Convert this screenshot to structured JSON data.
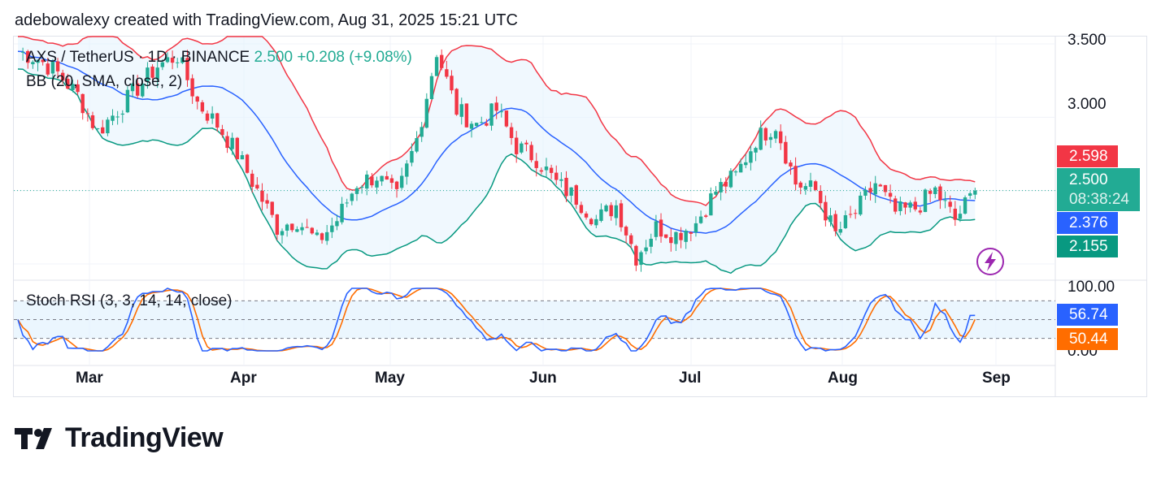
{
  "header": {
    "text": "adebowalexy created with TradingView.com, Aug 31, 2025 15:21 UTC"
  },
  "legend": {
    "symbol": "AXS / TetherUS · 1D · BINANCE",
    "price": "2.500",
    "change": "+0.208 (+9.08%)",
    "bb": "BB (20, SMA, close, 2)",
    "stoch": "Stoch RSI (3, 3, 14, 14, close)"
  },
  "price_axis": {
    "ticks": [
      "3.500",
      "3.000"
    ]
  },
  "stoch_axis": {
    "ticks": [
      "100.00",
      "0.00"
    ]
  },
  "badges": {
    "bb_upper": "2.598",
    "last_price": "2.500",
    "countdown": "08:38:24",
    "bb_basis": "2.376",
    "bb_lower": "2.155",
    "stoch_k": "56.74",
    "stoch_d": "50.44"
  },
  "x_axis": {
    "labels": [
      "Mar",
      "Apr",
      "May",
      "Jun",
      "Jul",
      "Aug",
      "Sep"
    ]
  },
  "logo": {
    "text": "TradingView"
  },
  "colors": {
    "up": "#22ab94",
    "down": "#f23645",
    "bb_upper": "#f23645",
    "bb_basis": "#2962ff",
    "bb_lower": "#089981",
    "bb_fill": "#e3f2fd",
    "stoch_k": "#2962ff",
    "stoch_d": "#ff6d00",
    "stoch_band": "#e3f2fd",
    "badge_upper": "#f23645",
    "badge_last": "#22ab94",
    "badge_basis": "#2962ff",
    "badge_lower": "#089981",
    "badge_d": "#ff6d00"
  },
  "chart_data": {
    "type": "candlestick",
    "title": "AXS / TetherUS · 1D · BINANCE",
    "y_range": [
      1.9,
      3.55
    ],
    "x_range": [
      "2025-02-20",
      "2025-09-05"
    ],
    "close_series": [
      [
        "2025-02-20",
        3.45
      ],
      [
        "2025-02-24",
        3.4
      ],
      [
        "2025-02-28",
        3.3
      ],
      [
        "2025-03-04",
        3.15
      ],
      [
        "2025-03-08",
        2.9
      ],
      [
        "2025-03-12",
        3.05
      ],
      [
        "2025-03-16",
        3.2
      ],
      [
        "2025-03-20",
        3.35
      ],
      [
        "2025-03-24",
        3.42
      ],
      [
        "2025-03-28",
        3.1
      ],
      [
        "2025-04-01",
        2.95
      ],
      [
        "2025-04-05",
        2.75
      ],
      [
        "2025-04-09",
        2.5
      ],
      [
        "2025-04-13",
        2.25
      ],
      [
        "2025-04-17",
        2.3
      ],
      [
        "2025-04-21",
        2.15
      ],
      [
        "2025-04-25",
        2.3
      ],
      [
        "2025-04-29",
        2.55
      ],
      [
        "2025-05-03",
        2.6
      ],
      [
        "2025-05-07",
        2.45
      ],
      [
        "2025-05-11",
        2.85
      ],
      [
        "2025-05-15",
        3.45
      ],
      [
        "2025-05-19",
        3.05
      ],
      [
        "2025-05-23",
        2.95
      ],
      [
        "2025-05-27",
        3.05
      ],
      [
        "2025-05-31",
        2.8
      ],
      [
        "2025-06-04",
        2.72
      ],
      [
        "2025-06-08",
        2.55
      ],
      [
        "2025-06-12",
        2.45
      ],
      [
        "2025-06-16",
        2.3
      ],
      [
        "2025-06-20",
        2.4
      ],
      [
        "2025-06-24",
        2.05
      ],
      [
        "2025-06-28",
        2.25
      ],
      [
        "2025-07-02",
        2.2
      ],
      [
        "2025-07-06",
        2.28
      ],
      [
        "2025-07-10",
        2.5
      ],
      [
        "2025-07-14",
        2.6
      ],
      [
        "2025-07-18",
        2.85
      ],
      [
        "2025-07-22",
        2.95
      ],
      [
        "2025-07-26",
        2.55
      ],
      [
        "2025-07-30",
        2.5
      ],
      [
        "2025-08-03",
        2.2
      ],
      [
        "2025-08-07",
        2.35
      ],
      [
        "2025-08-11",
        2.55
      ],
      [
        "2025-08-15",
        2.35
      ],
      [
        "2025-08-19",
        2.38
      ],
      [
        "2025-08-23",
        2.5
      ],
      [
        "2025-08-27",
        2.3
      ],
      [
        "2025-08-31",
        2.5
      ]
    ],
    "bollinger": {
      "upper_last": 2.598,
      "basis_last": 2.376,
      "lower_last": 2.155
    },
    "stoch_rsi": {
      "k_last": 56.74,
      "d_last": 50.44,
      "y_range": [
        0,
        100
      ]
    },
    "x_labels": [
      "Mar",
      "Apr",
      "May",
      "Jun",
      "Jul",
      "Aug",
      "Sep"
    ]
  }
}
